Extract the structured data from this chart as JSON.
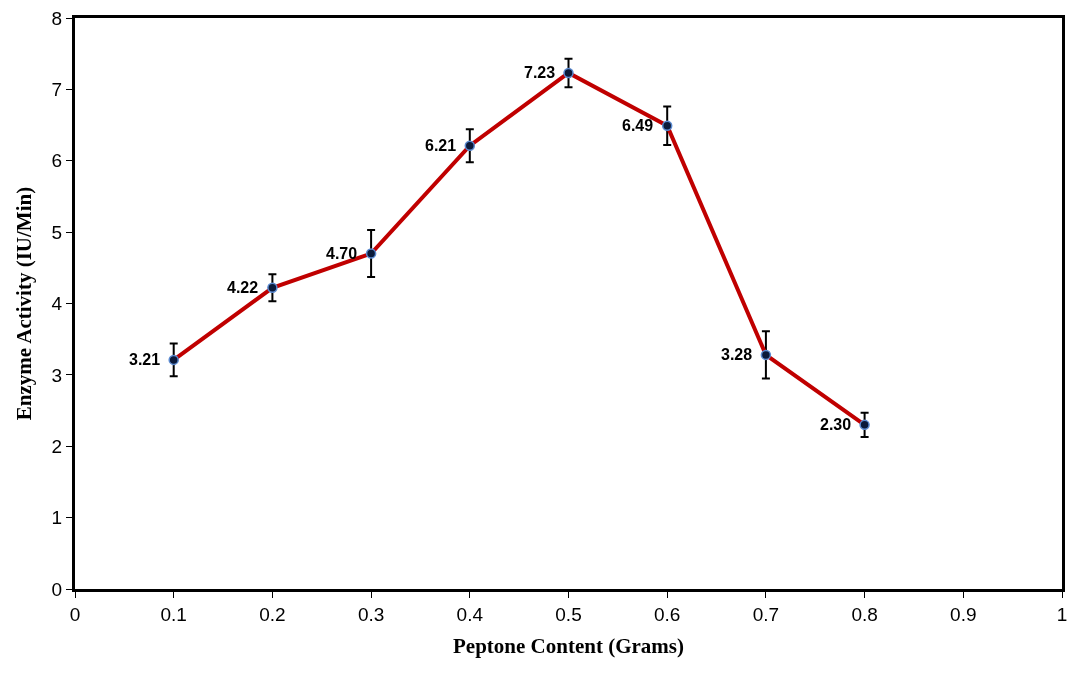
{
  "chart_data": {
    "type": "line",
    "xlabel": "Peptone Content (Grams)",
    "ylabel": "Enzyme Activity (IU/Min)",
    "x": [
      0.1,
      0.2,
      0.3,
      0.4,
      0.5,
      0.6,
      0.7,
      0.8
    ],
    "series": [
      {
        "color": "#c00000",
        "values": [
          3.21,
          4.22,
          4.7,
          6.21,
          7.23,
          6.49,
          3.28,
          2.3
        ],
        "errors": [
          0.23,
          0.19,
          0.33,
          0.23,
          0.2,
          0.27,
          0.33,
          0.17
        ],
        "value_labels": [
          "3.21",
          "4.22",
          "4.70",
          "6.21",
          "7.23",
          "6.49",
          "3.28",
          "2.30"
        ]
      }
    ],
    "xlim": [
      0,
      1
    ],
    "xticks": [
      0,
      0.1,
      0.2,
      0.3,
      0.4,
      0.5,
      0.6,
      0.7,
      0.8,
      0.9,
      1
    ],
    "ylim": [
      0,
      8
    ],
    "yticks": [
      0,
      1,
      2,
      3,
      4,
      5,
      6,
      7,
      8
    ],
    "marker": "circle",
    "line_style": "solid"
  }
}
